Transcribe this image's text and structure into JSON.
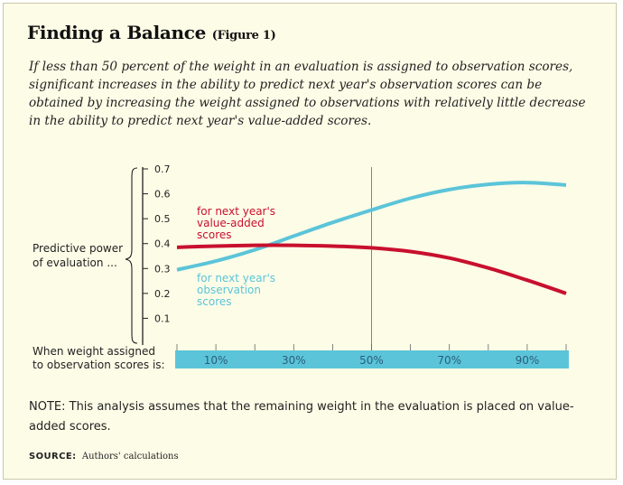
{
  "header": {
    "title": "Finding a Balance",
    "figure_label": "(Figure 1)",
    "subtitle": "If less than 50 percent of the weight in an evaluation is assigned to observation scores, significant increases in the ability to predict next year's observation scores can be obtained by increasing the weight assigned to observations with relatively little decrease in the ability to predict next year's value-added scores."
  },
  "chart_data": {
    "type": "line",
    "title": "Finding a Balance",
    "ylabel_lines": [
      "Predictive power",
      "of evaluation ..."
    ],
    "xlabel_lines": [
      "When weight assigned",
      "to observation scores is:"
    ],
    "xlim": [
      0,
      100
    ],
    "ylim": [
      0,
      0.7
    ],
    "y_ticks": [
      0.1,
      0.2,
      0.3,
      0.4,
      0.5,
      0.6,
      0.7
    ],
    "y_tick_labels": [
      "0.1",
      "0.2",
      "0.3",
      "0.4",
      "0.5",
      "0.6",
      "0.7"
    ],
    "x_ticks": [
      10,
      30,
      50,
      70,
      90
    ],
    "x_tick_labels": [
      "10%",
      "30%",
      "50%",
      "70%",
      "90%"
    ],
    "x_minor_ticks": [
      0,
      10,
      20,
      30,
      40,
      50,
      60,
      70,
      80,
      90,
      100
    ],
    "reference_line_x": 50,
    "grid": false,
    "series": [
      {
        "name": "value-added",
        "label_lines": [
          "for next year's",
          "value-added",
          "scores"
        ],
        "color": "#c8102e",
        "x": [
          0,
          10,
          20,
          30,
          40,
          50,
          60,
          70,
          80,
          90,
          100
        ],
        "values": [
          0.385,
          0.39,
          0.393,
          0.393,
          0.39,
          0.383,
          0.368,
          0.342,
          0.302,
          0.253,
          0.2
        ]
      },
      {
        "name": "observation",
        "label_lines": [
          "for next year's",
          "observation",
          "scores"
        ],
        "color": "#5bc4d9",
        "x": [
          0,
          10,
          20,
          30,
          40,
          50,
          60,
          70,
          80,
          90,
          100
        ],
        "values": [
          0.295,
          0.33,
          0.375,
          0.43,
          0.485,
          0.535,
          0.582,
          0.617,
          0.638,
          0.645,
          0.635
        ]
      }
    ]
  },
  "footer": {
    "note": "NOTE: This analysis assumes that the remaining weight in the evaluation is placed on value-added scores.",
    "source_label": "SOURCE:",
    "source_text": "Authors' calculations"
  },
  "colors": {
    "background": "#fdfce7",
    "axis_band": "#5bc4d9",
    "value_added": "#c8102e",
    "observation": "#5bc4d9"
  }
}
